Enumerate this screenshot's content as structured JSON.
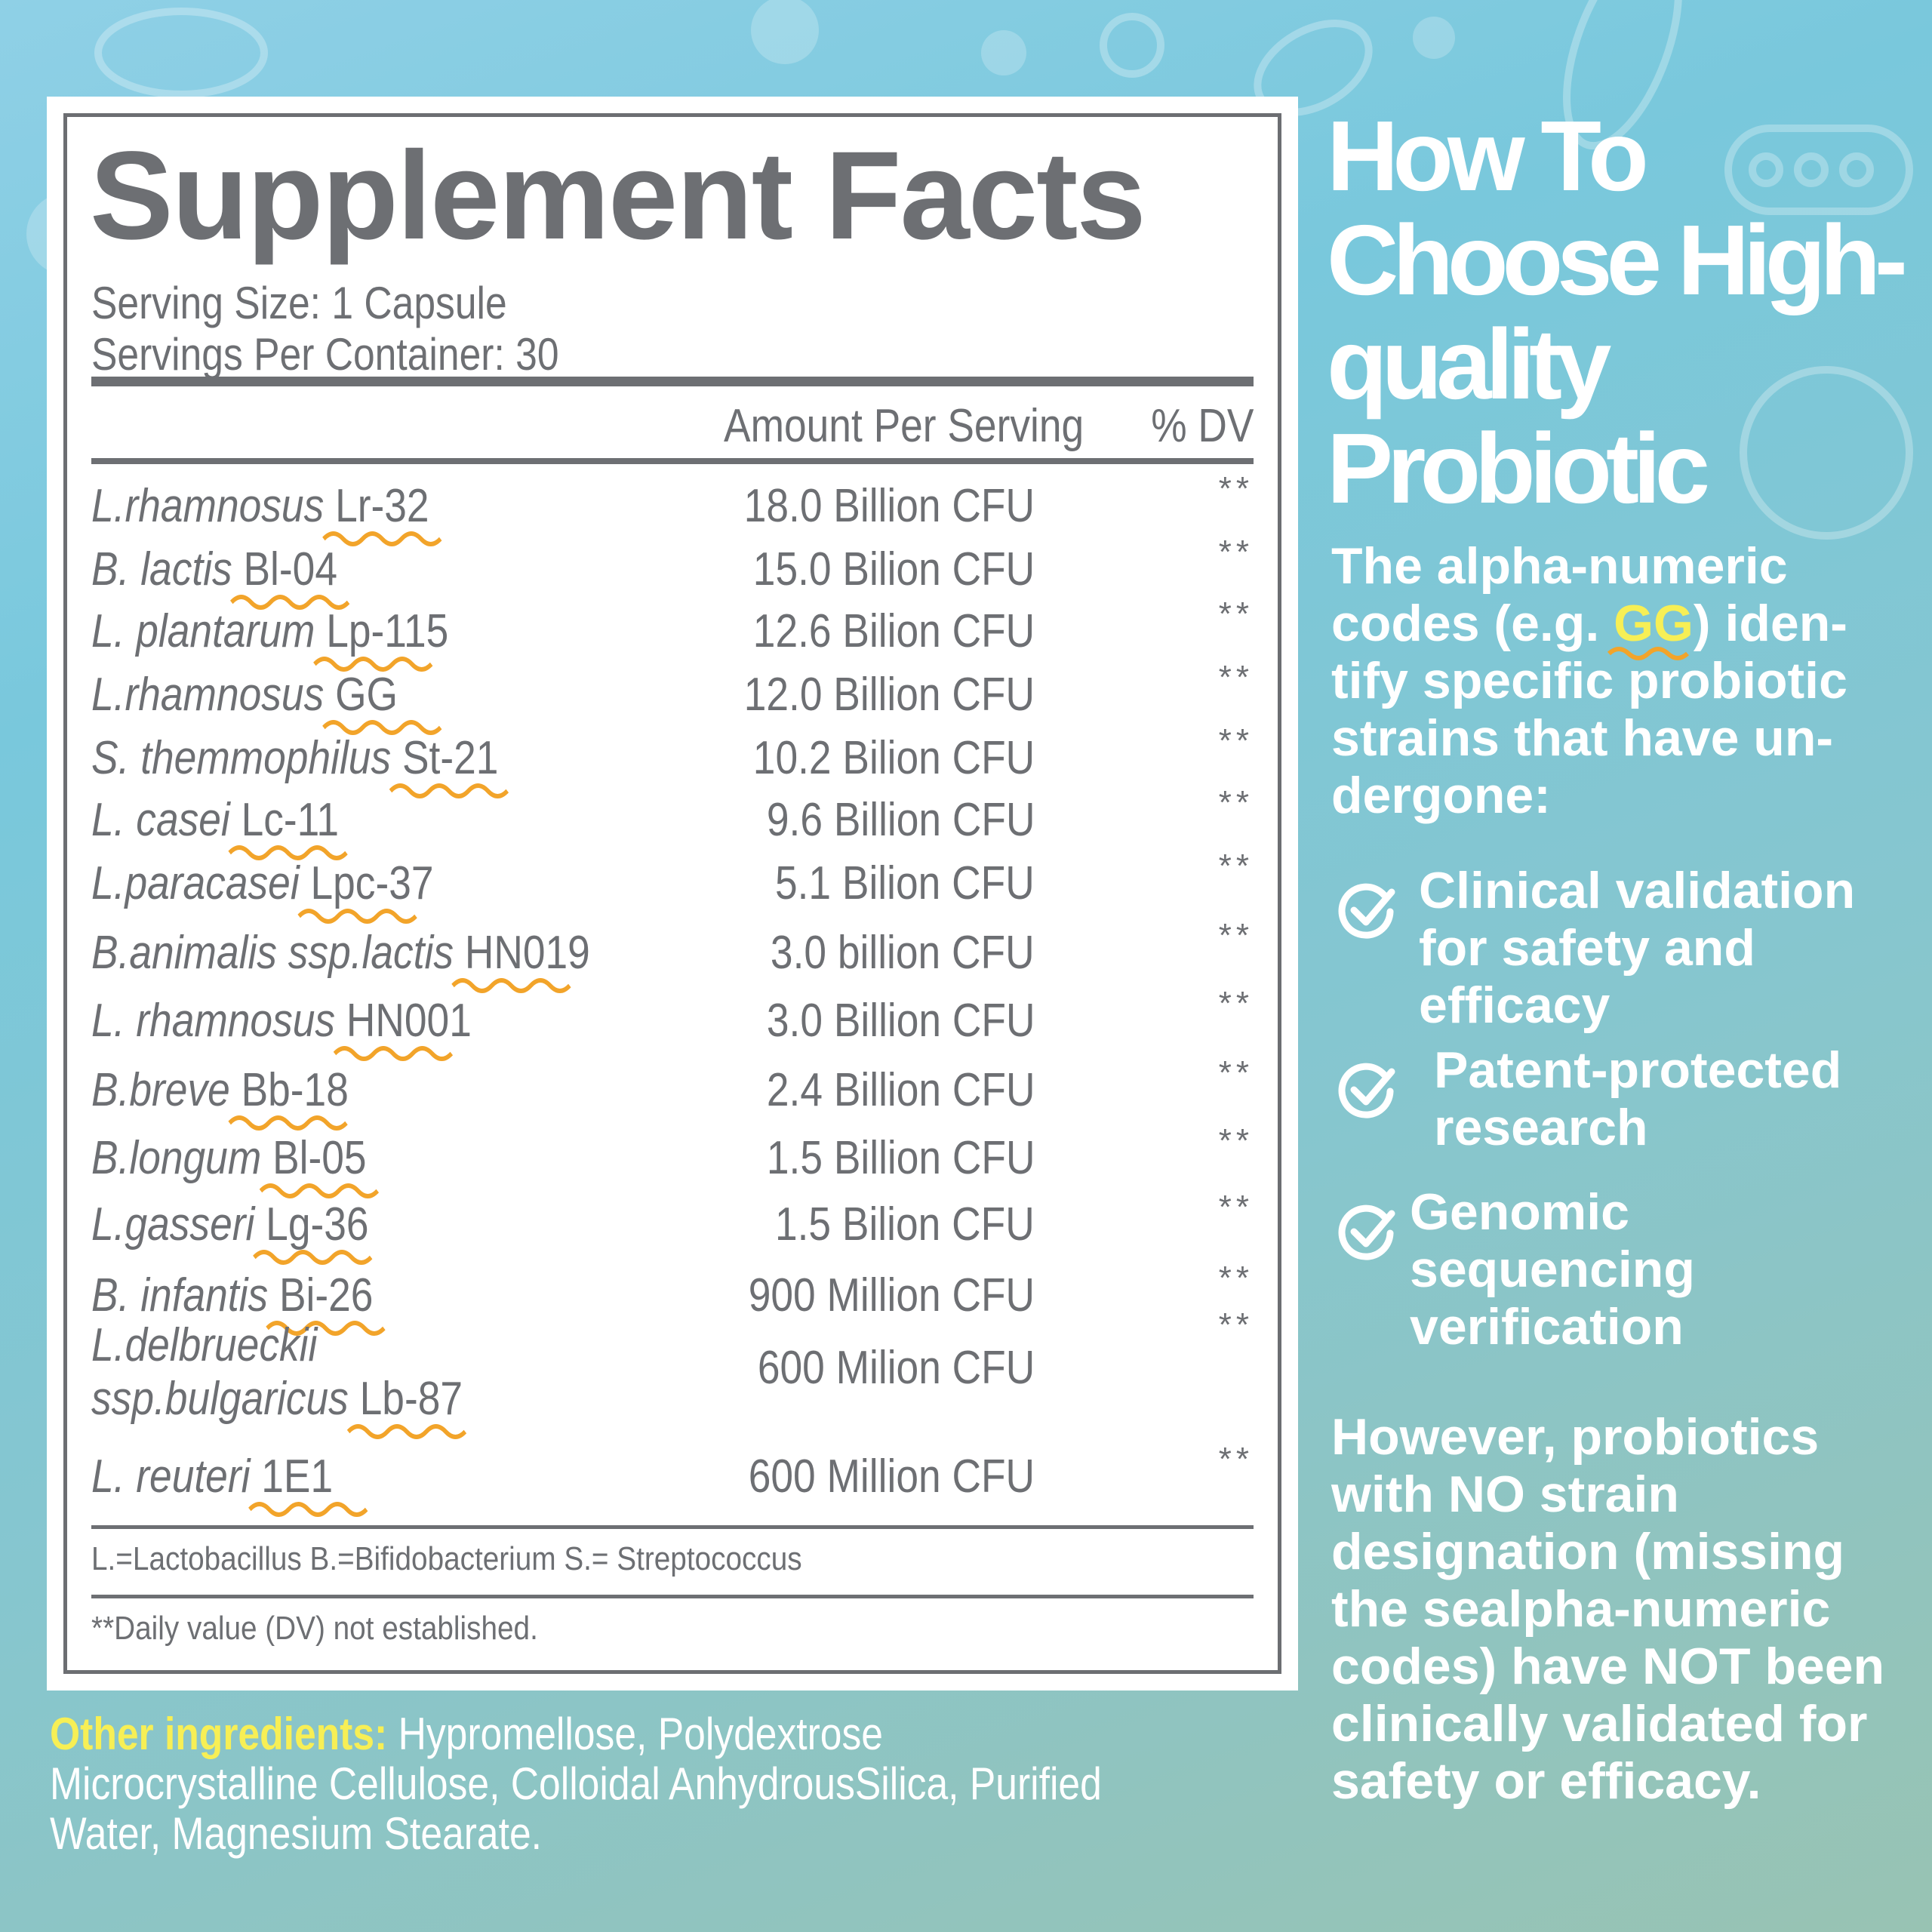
{
  "colors": {
    "text_gray": "#6d6f73",
    "squiggle_orange": "#f2a42a",
    "highlight_yellow": "#f7ef55",
    "white": "#ffffff"
  },
  "supplement_facts": {
    "title": "Supplement Facts",
    "serving_size": "Serving Size: 1 Capsule",
    "servings_per_container": "Servings Per Container: 30",
    "col_amount": "Amount Per Serving",
    "col_dv": "% DV",
    "rows": [
      {
        "species": "L.rhamnosus",
        "code": "Lr-32",
        "amount": "18.0 Billion CFU",
        "dv": "**"
      },
      {
        "species": "B. lactis",
        "code": "Bl-04",
        "amount": "15.0 Bilion CFU",
        "dv": "**"
      },
      {
        "species": "L. plantarum",
        "code": "Lp-115",
        "amount": "12.6 Bilion CFU",
        "dv": "**"
      },
      {
        "species": "L.rhamnosus",
        "code": "GG",
        "amount": "12.0 Billion CFU",
        "dv": "**"
      },
      {
        "species": "S. themmophilus",
        "code": "St-21",
        "amount": "10.2 Bilion CFU",
        "dv": "**"
      },
      {
        "species": "L. casei",
        "code": "Lc-11",
        "amount": "9.6 Billion CFU",
        "dv": "**"
      },
      {
        "species": "L.paracasei",
        "code": "Lpc-37",
        "amount": "5.1 Bilion CFU",
        "dv": "**"
      },
      {
        "species": "B.animalis ssp.lactis",
        "code": "HN019",
        "amount": "3.0 billion CFU",
        "dv": "**"
      },
      {
        "species": "L. rhamnosus",
        "code": "HN001",
        "amount": "3.0 Billion CFU",
        "dv": "**"
      },
      {
        "species": "B.breve",
        "code": "Bb-18",
        "amount": "2.4 Billion CFU",
        "dv": "**"
      },
      {
        "species": "B.longum",
        "code": "Bl-05",
        "amount": "1.5 Billion CFU",
        "dv": "**"
      },
      {
        "species": "L.gasseri",
        "code": "Lg-36",
        "amount": "1.5 Bilion CFU",
        "dv": "**"
      },
      {
        "species": "B. infantis",
        "code": "Bi-26",
        "amount": "900 Million CFU",
        "dv": "**"
      },
      {
        "species_line1": "L.delbrueckii",
        "species": "ssp.bulgaricus",
        "code": "Lb-87",
        "amount": "600 Milion CFU",
        "dv": "**"
      },
      {
        "species": "L. reuteri",
        "code": "1E1",
        "amount": "600 Million CFU",
        "dv": "**"
      }
    ],
    "abbreviations": "L.=Lactobacillus B.=Bifidobacterium S.= Streptococcus",
    "footnote": "**Daily value (DV) not established."
  },
  "other_ingredients": {
    "label": "Other ingredients:",
    "text": " Hypromellose, Polydextrose Microcrystalline Cellulose, Colloidal AnhydrousSilica, Purified Water, Magnesium Stearate."
  },
  "right_panel": {
    "title": "How To Choose High-quality Probiotic",
    "intro_before": "The alpha-numeric codes (e.g. ",
    "intro_highlight": "GG",
    "intro_after": ") iden-tify specific probiotic strains that have un-dergone:",
    "checks": [
      {
        "icon": "check-circle-icon",
        "text": "Clinical validation\nfor safety and\nefficacy"
      },
      {
        "icon": "check-circle-icon",
        "text": "Patent-protected\nresearch"
      },
      {
        "icon": "check-circle-icon",
        "text": "Genomic\nsequencing\nverification"
      }
    ],
    "closing": "However, probiotics with NO strain designation (missing the sealpha-numeric codes) have NOT been clinically validated for safety or efficacy."
  }
}
